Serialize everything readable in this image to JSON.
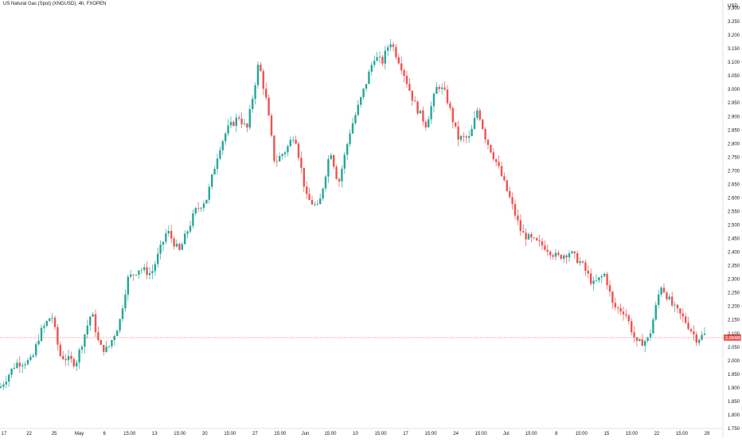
{
  "header": {
    "title": "US Natural Gas (Spot) (XNGUSD), 4h, FXOPEN"
  },
  "axis": {
    "currency": "USD"
  },
  "last_price": {
    "label": "2.08485"
  },
  "colors": {
    "up": "#26a69a",
    "down": "#ef5350",
    "grid": "#f0f3fa",
    "axis_text": "#131722",
    "price_line": "#ef5350"
  },
  "chart_data": {
    "type": "candlestick",
    "title": "US Natural Gas (Spot) (XNGUSD), 4h, FXOPEN",
    "ylabel": "USD",
    "ylim": [
      1.75,
      3.3
    ],
    "y_ticks": [
      "1.750",
      "1.800",
      "1.850",
      "1.900",
      "1.950",
      "2.000",
      "2.050",
      "2.100",
      "2.150",
      "2.200",
      "2.250",
      "2.300",
      "2.350",
      "2.400",
      "2.450",
      "2.500",
      "2.550",
      "2.600",
      "2.650",
      "2.700",
      "2.750",
      "2.800",
      "2.850",
      "2.900",
      "2.950",
      "3.000",
      "3.050",
      "3.100",
      "3.150",
      "3.200",
      "3.250",
      "3.300"
    ],
    "x_ticks": [
      "17",
      "22",
      "25",
      "May",
      "6",
      "15:00",
      "13",
      "15:00",
      "20",
      "15:00",
      "27",
      "15:00",
      "Jun",
      "15:00",
      "10",
      "15:00",
      "17",
      "15:00",
      "24",
      "15:00",
      "Jul",
      "15:00",
      "8",
      "15:00",
      "15",
      "15:00",
      "22",
      "15:00",
      "29"
    ],
    "last_price": 2.08485,
    "path": [
      [
        0,
        1.9
      ],
      [
        20,
        1.99
      ],
      [
        40,
        2.0
      ],
      [
        50,
        2.1
      ],
      [
        65,
        2.17
      ],
      [
        75,
        2.02
      ],
      [
        95,
        1.99
      ],
      [
        115,
        2.18
      ],
      [
        125,
        2.05
      ],
      [
        135,
        2.04
      ],
      [
        150,
        2.14
      ],
      [
        160,
        2.3
      ],
      [
        175,
        2.34
      ],
      [
        190,
        2.32
      ],
      [
        210,
        2.48
      ],
      [
        225,
        2.4
      ],
      [
        245,
        2.55
      ],
      [
        260,
        2.6
      ],
      [
        275,
        2.78
      ],
      [
        285,
        2.85
      ],
      [
        300,
        2.9
      ],
      [
        310,
        2.85
      ],
      [
        325,
        3.1
      ],
      [
        335,
        2.95
      ],
      [
        345,
        2.73
      ],
      [
        360,
        2.78
      ],
      [
        370,
        2.84
      ],
      [
        385,
        2.6
      ],
      [
        400,
        2.56
      ],
      [
        415,
        2.78
      ],
      [
        425,
        2.65
      ],
      [
        440,
        2.85
      ],
      [
        455,
        2.98
      ],
      [
        470,
        3.12
      ],
      [
        480,
        3.1
      ],
      [
        490,
        3.18
      ],
      [
        505,
        3.08
      ],
      [
        520,
        2.95
      ],
      [
        535,
        2.87
      ],
      [
        550,
        3.02
      ],
      [
        560,
        2.98
      ],
      [
        575,
        2.82
      ],
      [
        590,
        2.82
      ],
      [
        600,
        2.93
      ],
      [
        610,
        2.82
      ],
      [
        625,
        2.72
      ],
      [
        640,
        2.6
      ],
      [
        655,
        2.47
      ],
      [
        670,
        2.44
      ],
      [
        685,
        2.42
      ],
      [
        700,
        2.38
      ],
      [
        715,
        2.4
      ],
      [
        730,
        2.36
      ],
      [
        745,
        2.28
      ],
      [
        760,
        2.32
      ],
      [
        770,
        2.2
      ],
      [
        785,
        2.18
      ],
      [
        800,
        2.06
      ],
      [
        815,
        2.08
      ],
      [
        830,
        2.28
      ],
      [
        845,
        2.2
      ],
      [
        860,
        2.15
      ],
      [
        875,
        2.08
      ],
      [
        888,
        2.1
      ]
    ]
  }
}
